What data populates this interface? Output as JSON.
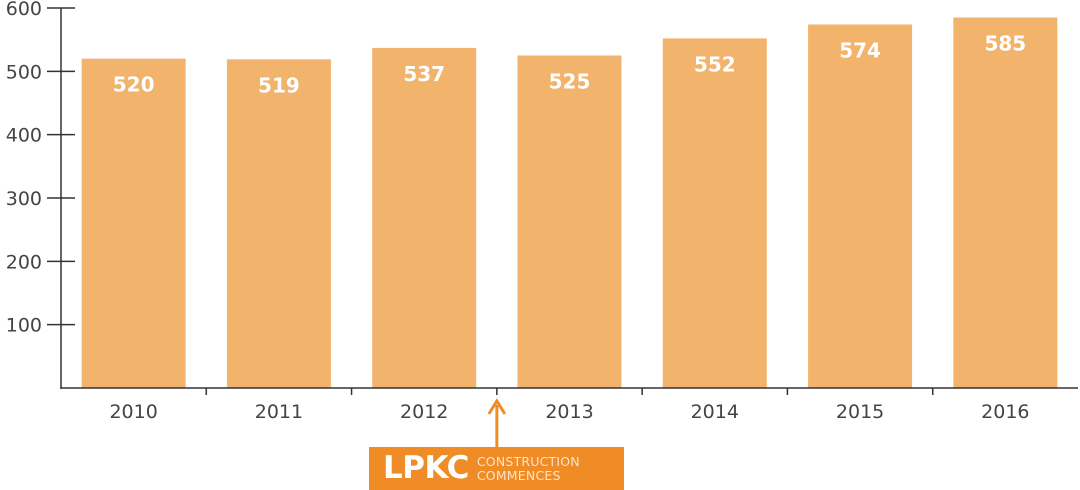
{
  "chart_data": {
    "type": "bar",
    "categories": [
      "2010",
      "2011",
      "2012",
      "2013",
      "2014",
      "2015",
      "2016"
    ],
    "values": [
      520,
      519,
      537,
      525,
      552,
      574,
      585
    ],
    "data_labels": [
      "520",
      "519",
      "537",
      "525",
      "552",
      "574",
      "585"
    ],
    "title": "",
    "xlabel": "",
    "ylabel": "",
    "ylim": [
      0,
      600
    ],
    "yticks": [
      100,
      200,
      300,
      400,
      500,
      600
    ],
    "ytick_labels": [
      "100",
      "200",
      "300",
      "400",
      "500",
      "600"
    ],
    "grid": false,
    "legend": "none",
    "bar_color": "#f2b36c",
    "axis_color": "#333333",
    "annotation": {
      "after_category": "2012",
      "strong": "LPKC",
      "line1": "CONSTRUCTION",
      "line2": "COMMENCES",
      "color": "#ef8c26"
    }
  }
}
